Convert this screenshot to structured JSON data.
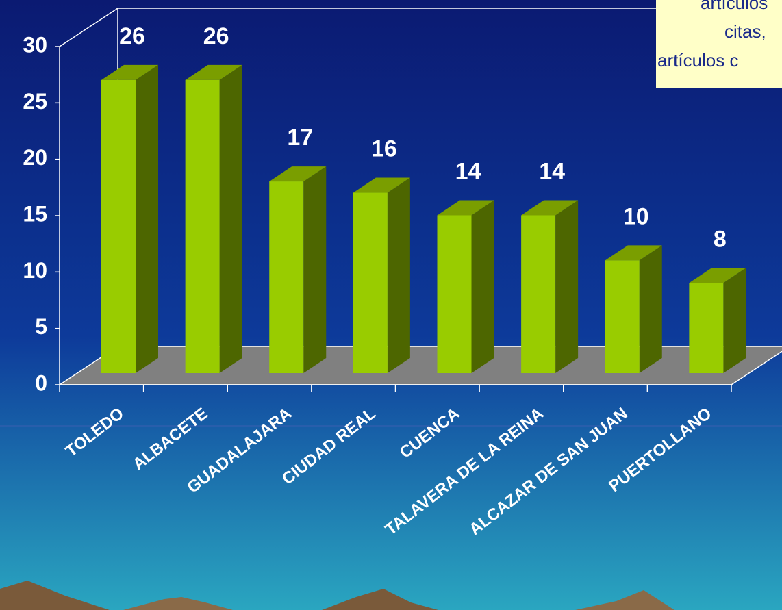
{
  "chart_data": {
    "type": "bar3d",
    "categories": [
      "TOLEDO",
      "ALBACETE",
      "GUADALAJARA",
      "CIUDAD REAL",
      "CUENCA",
      "TALAVERA DE LA REINA",
      "ALCAZAR DE SAN JUAN",
      "PUERTOLLANO"
    ],
    "values": [
      26,
      26,
      17,
      16,
      14,
      14,
      10,
      8
    ],
    "color": "#99cc00",
    "ylim": [
      0,
      30
    ],
    "yticks": [
      0,
      5,
      10,
      15,
      20,
      25,
      30
    ],
    "annotation": [
      "artículos",
      "citas,",
      "artículos c"
    ]
  }
}
